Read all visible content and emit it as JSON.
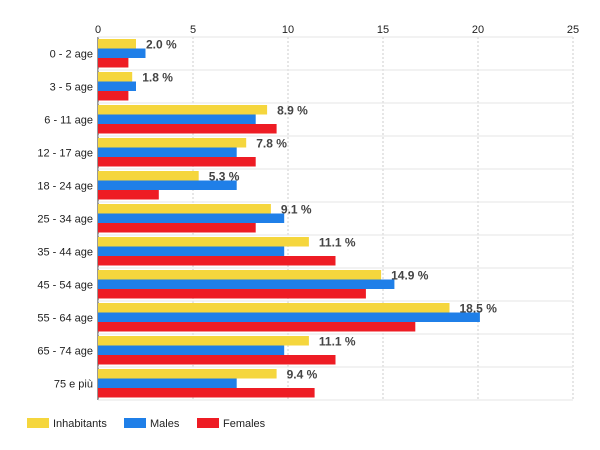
{
  "chart_data": {
    "type": "bar",
    "orientation": "horizontal",
    "categories": [
      "0 - 2 age",
      "3 - 5 age",
      "6 - 11 age",
      "12 - 17 age",
      "18 - 24 age",
      "25 - 34 age",
      "35 - 44 age",
      "45 - 54 age",
      "55 - 64 age",
      "65 - 74 age",
      "75 e più"
    ],
    "series": [
      {
        "name": "Inhabitants",
        "color": "#f5d63d",
        "values": [
          2.0,
          1.8,
          8.9,
          7.8,
          5.3,
          9.1,
          11.1,
          14.9,
          18.5,
          11.1,
          9.4
        ]
      },
      {
        "name": "Males",
        "color": "#1f7fe8",
        "values": [
          2.5,
          2.0,
          8.3,
          7.3,
          7.3,
          9.8,
          9.8,
          15.6,
          20.1,
          9.8,
          7.3
        ]
      },
      {
        "name": "Females",
        "color": "#ee1c24",
        "values": [
          1.6,
          1.6,
          9.4,
          8.3,
          3.2,
          8.3,
          12.5,
          14.1,
          16.7,
          12.5,
          11.4
        ]
      }
    ],
    "data_labels": [
      "2.0 %",
      "1.8 %",
      "8.9 %",
      "7.8 %",
      "5.3 %",
      "9.1 %",
      "11.1 %",
      "14.9 %",
      "18.5 %",
      "11.1 %",
      "9.4 %"
    ],
    "x_ticks": [
      0,
      5,
      10,
      15,
      20,
      25
    ],
    "xlim": [
      0,
      25
    ],
    "x_axis_position": "top",
    "grid": true,
    "legend_position": "bottom-left"
  }
}
